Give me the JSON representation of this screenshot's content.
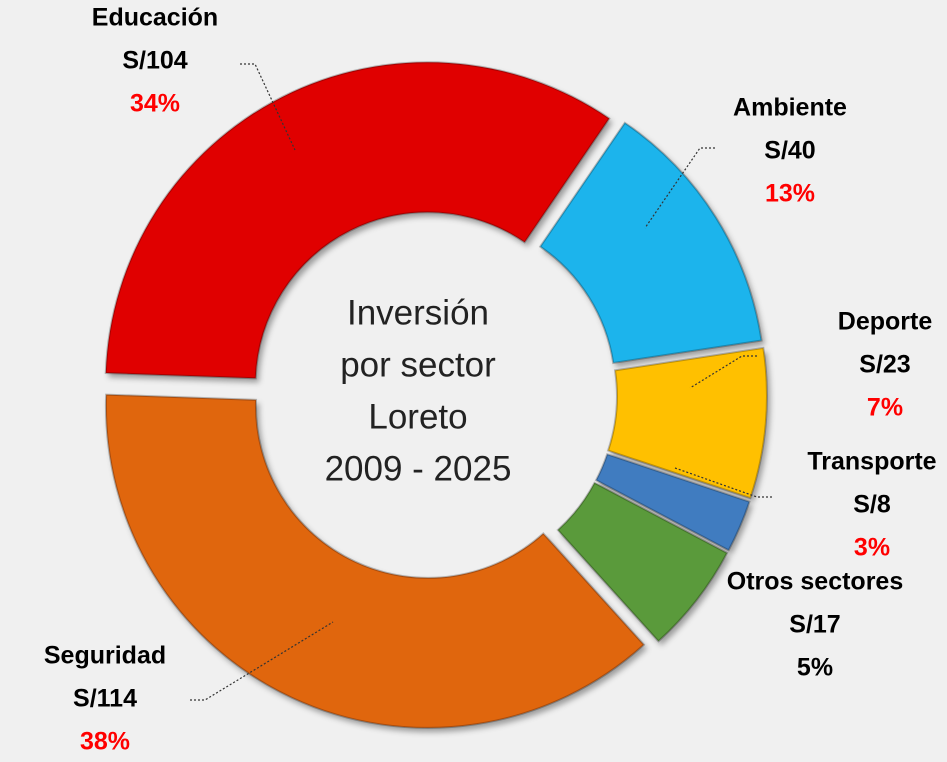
{
  "chart_data": {
    "type": "donut",
    "center_text": [
      "Inversión",
      "por sector",
      "Loreto",
      "2009 - 2025"
    ],
    "categories": [
      "Educación",
      "Ambiente",
      "Deporte",
      "Transporte",
      "Otros sectores",
      "Seguridad"
    ],
    "values": [
      104,
      40,
      23,
      8,
      17,
      114
    ],
    "value_labels": [
      "S/104",
      "S/40",
      "S/23",
      "S/8",
      "S/17",
      "S/114"
    ],
    "percentages": [
      34,
      13,
      7,
      3,
      5,
      38
    ],
    "percentage_labels": [
      "34%",
      "13%",
      "7%",
      "3%",
      "5%",
      "38%"
    ],
    "colors": [
      "#e00000",
      "#1cb4ec",
      "#ffc000",
      "#3f7cc0",
      "#5a9a3a",
      "#e0660f"
    ],
    "percentage_label_colors": [
      "#ff0000",
      "#ff0000",
      "#ff0000",
      "#ff0000",
      "#000000",
      "#ff0000"
    ]
  }
}
